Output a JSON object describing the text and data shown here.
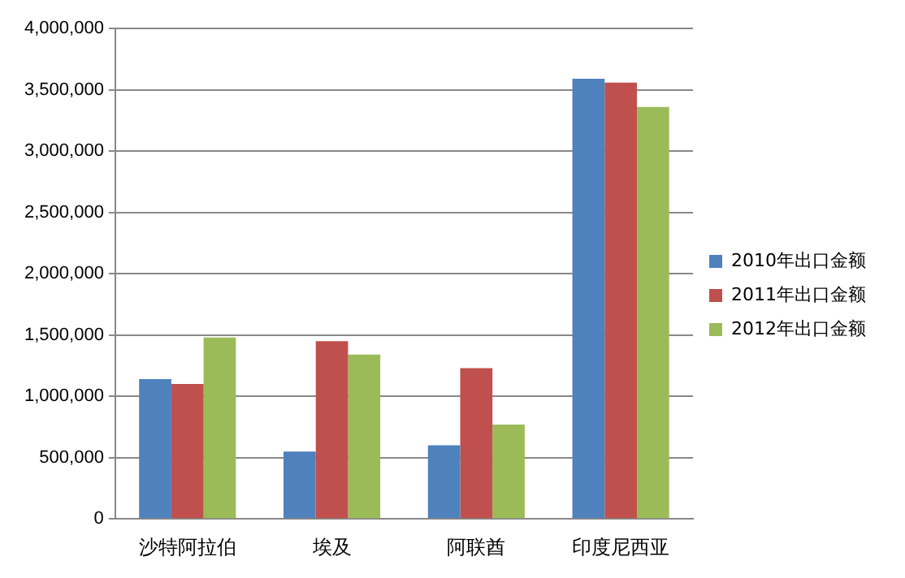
{
  "chart_data": {
    "type": "bar",
    "categories": [
      "沙特阿拉伯",
      "埃及",
      "阿联酋",
      "印度尼西亚"
    ],
    "series": [
      {
        "name": "2010年出口金额",
        "color": "#4f81bd",
        "values": [
          1140000,
          550000,
          600000,
          3590000
        ]
      },
      {
        "name": "2011年出口金额",
        "color": "#c0504d",
        "values": [
          1100000,
          1450000,
          1230000,
          3560000
        ]
      },
      {
        "name": "2012年出口金额",
        "color": "#9bbb59",
        "values": [
          1480000,
          1340000,
          770000,
          3360000
        ]
      }
    ],
    "ylim": [
      0,
      4000000
    ],
    "yticks": [
      0,
      {
        "value": 500000,
        "label": "500,000"
      },
      {
        "value": 1000000,
        "label": "1,000,000"
      },
      {
        "value": 1500000,
        "label": "1,500,000"
      },
      {
        "value": 2000000,
        "label": "2,000,000"
      },
      {
        "value": 2500000,
        "label": "2,500,000"
      },
      {
        "value": 3000000,
        "label": "3,000,000"
      },
      {
        "value": 3500000,
        "label": "3,500,000"
      },
      {
        "value": 4000000,
        "label": "4,000,000"
      }
    ],
    "grid": "y",
    "legend": "right"
  }
}
